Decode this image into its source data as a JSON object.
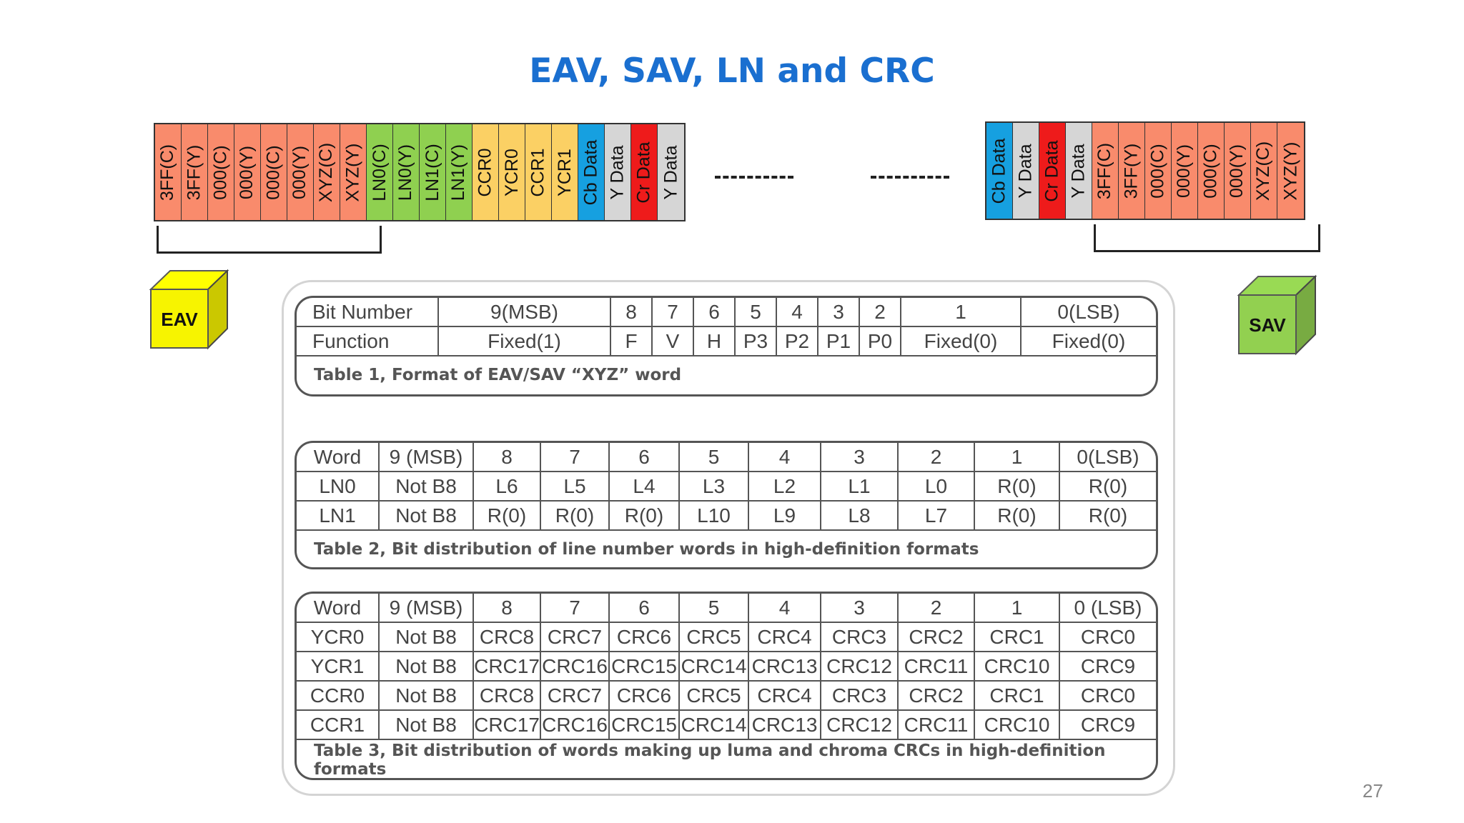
{
  "title": "EAV, SAV, LN and CRC",
  "colors": {
    "ff": "#f98b6c",
    "ln": "#8fd050",
    "crc": "#fbd064",
    "cb": "#16a0e0",
    "y": "#d6d6d6",
    "cr": "#ee1b1b",
    "eav_cube": "#f7f400",
    "sav_cube": "#92d050"
  },
  "left_stream": [
    {
      "label": "3FF(C)",
      "kind": "ff"
    },
    {
      "label": "3FF(Y)",
      "kind": "ff"
    },
    {
      "label": "000(C)",
      "kind": "ff"
    },
    {
      "label": "000(Y)",
      "kind": "ff"
    },
    {
      "label": "000(C)",
      "kind": "ff"
    },
    {
      "label": "000(Y)",
      "kind": "ff"
    },
    {
      "label": "XYZ(C)",
      "kind": "ff"
    },
    {
      "label": "XYZ(Y)",
      "kind": "ff"
    },
    {
      "label": "LN0(C)",
      "kind": "ln"
    },
    {
      "label": "LN0(Y)",
      "kind": "ln"
    },
    {
      "label": "LN1(C)",
      "kind": "ln"
    },
    {
      "label": "LN1(Y)",
      "kind": "ln"
    },
    {
      "label": "CCR0",
      "kind": "crc"
    },
    {
      "label": "YCR0",
      "kind": "crc"
    },
    {
      "label": "CCR1",
      "kind": "crc"
    },
    {
      "label": "YCR1",
      "kind": "crc"
    },
    {
      "label": "Cb Data",
      "kind": "cb"
    },
    {
      "label": "Y Data",
      "kind": "y"
    },
    {
      "label": "Cr Data",
      "kind": "cr"
    },
    {
      "label": "Y Data",
      "kind": "y"
    }
  ],
  "right_stream": [
    {
      "label": "Cb Data",
      "kind": "cb"
    },
    {
      "label": "Y Data",
      "kind": "y"
    },
    {
      "label": "Cr Data",
      "kind": "cr"
    },
    {
      "label": "Y Data",
      "kind": "y"
    },
    {
      "label": "3FF(C)",
      "kind": "ff"
    },
    {
      "label": "3FF(Y)",
      "kind": "ff"
    },
    {
      "label": "000(C)",
      "kind": "ff"
    },
    {
      "label": "000(Y)",
      "kind": "ff"
    },
    {
      "label": "000(C)",
      "kind": "ff"
    },
    {
      "label": "000(Y)",
      "kind": "ff"
    },
    {
      "label": "XYZ(C)",
      "kind": "ff"
    },
    {
      "label": "XYZ(Y)",
      "kind": "ff"
    }
  ],
  "eav_label": "EAV",
  "sav_label": "SAV",
  "table1": {
    "rows": [
      [
        "Bit Number",
        "9(MSB)",
        "8",
        "7",
        "6",
        "5",
        "4",
        "3",
        "2",
        "1",
        "0(LSB)"
      ],
      [
        "Function",
        "Fixed(1)",
        "F",
        "V",
        "H",
        "P3",
        "P2",
        "P1",
        "P0",
        "Fixed(0)",
        "Fixed(0)"
      ]
    ],
    "caption": "Table 1, Format of EAV/SAV “XYZ” word"
  },
  "table2": {
    "rows": [
      [
        "Word",
        "9 (MSB)",
        "8",
        "7",
        "6",
        "5",
        "4",
        "3",
        "2",
        "1",
        "0(LSB)"
      ],
      [
        "LN0",
        "Not B8",
        "L6",
        "L5",
        "L4",
        "L3",
        "L2",
        "L1",
        "L0",
        "R(0)",
        "R(0)"
      ],
      [
        "LN1",
        "Not B8",
        "R(0)",
        "R(0)",
        "R(0)",
        "L10",
        "L9",
        "L8",
        "L7",
        "R(0)",
        "R(0)"
      ]
    ],
    "caption": "Table 2, Bit distribution of line number words in high-definition formats"
  },
  "table3": {
    "rows": [
      [
        "Word",
        "9 (MSB)",
        "8",
        "7",
        "6",
        "5",
        "4",
        "3",
        "2",
        "1",
        "0 (LSB)"
      ],
      [
        "YCR0",
        "Not B8",
        "CRC8",
        "CRC7",
        "CRC6",
        "CRC5",
        "CRC4",
        "CRC3",
        "CRC2",
        "CRC1",
        "CRC0"
      ],
      [
        "YCR1",
        "Not B8",
        "CRC17",
        "CRC16",
        "CRC15",
        "CRC14",
        "CRC13",
        "CRC12",
        "CRC11",
        "CRC10",
        "CRC9"
      ],
      [
        "CCR0",
        "Not B8",
        "CRC8",
        "CRC7",
        "CRC6",
        "CRC5",
        "CRC4",
        "CRC3",
        "CRC2",
        "CRC1",
        "CRC0"
      ],
      [
        "CCR1",
        "Not B8",
        "CRC17",
        "CRC16",
        "CRC15",
        "CRC14",
        "CRC13",
        "CRC12",
        "CRC11",
        "CRC10",
        "CRC9"
      ]
    ],
    "caption": "Table 3, Bit distribution of words making up luma and chroma CRCs in high-definition formats"
  },
  "page_number": "27"
}
